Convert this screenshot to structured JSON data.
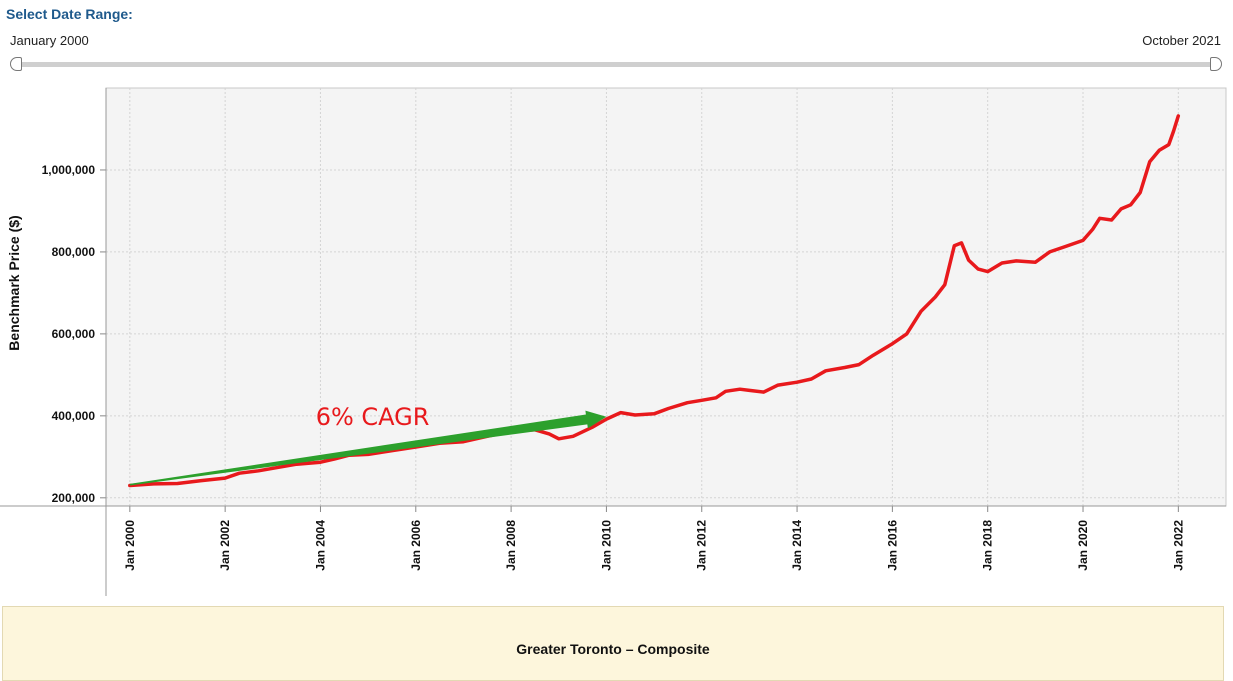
{
  "range": {
    "title": "Select Date Range:",
    "start_label": "January 2000",
    "end_label": "October 2021"
  },
  "footer": {
    "title": "Greater Toronto – Composite"
  },
  "chart_data": {
    "type": "line",
    "title": "",
    "xlabel": "",
    "ylabel": "Benchmark Price ($)",
    "xlim": [
      1999.5,
      2023.0
    ],
    "ylim": [
      180000,
      1200000
    ],
    "grid": true,
    "xticks": [
      {
        "value": 2000,
        "label": "Jan 2000"
      },
      {
        "value": 2002,
        "label": "Jan 2002"
      },
      {
        "value": 2004,
        "label": "Jan 2004"
      },
      {
        "value": 2006,
        "label": "Jan 2006"
      },
      {
        "value": 2008,
        "label": "Jan 2008"
      },
      {
        "value": 2010,
        "label": "Jan 2010"
      },
      {
        "value": 2012,
        "label": "Jan 2012"
      },
      {
        "value": 2014,
        "label": "Jan 2014"
      },
      {
        "value": 2016,
        "label": "Jan 2016"
      },
      {
        "value": 2018,
        "label": "Jan 2018"
      },
      {
        "value": 2020,
        "label": "Jan 2020"
      },
      {
        "value": 2022,
        "label": "Jan 2022"
      }
    ],
    "yticks": [
      {
        "value": 200000,
        "label": "200,000"
      },
      {
        "value": 400000,
        "label": "400,000"
      },
      {
        "value": 600000,
        "label": "600,000"
      },
      {
        "value": 800000,
        "label": "800,000"
      },
      {
        "value": 1000000,
        "label": "1,000,000"
      }
    ],
    "series": [
      {
        "color": "#e8191c",
        "points": [
          [
            2000.0,
            230000
          ],
          [
            2000.5,
            234000
          ],
          [
            2001.0,
            235000
          ],
          [
            2001.5,
            242000
          ],
          [
            2002.0,
            248000
          ],
          [
            2002.3,
            260000
          ],
          [
            2002.7,
            266000
          ],
          [
            2003.0,
            272000
          ],
          [
            2003.5,
            282000
          ],
          [
            2004.0,
            287000
          ],
          [
            2004.3,
            295000
          ],
          [
            2004.6,
            304000
          ],
          [
            2005.0,
            306000
          ],
          [
            2005.5,
            315000
          ],
          [
            2006.0,
            324000
          ],
          [
            2006.5,
            333000
          ],
          [
            2007.0,
            337000
          ],
          [
            2007.5,
            350000
          ],
          [
            2008.0,
            362000
          ],
          [
            2008.5,
            366000
          ],
          [
            2008.8,
            356000
          ],
          [
            2009.0,
            344000
          ],
          [
            2009.3,
            350000
          ],
          [
            2009.7,
            372000
          ],
          [
            2010.0,
            392000
          ],
          [
            2010.3,
            408000
          ],
          [
            2010.6,
            402000
          ],
          [
            2011.0,
            405000
          ],
          [
            2011.3,
            418000
          ],
          [
            2011.7,
            432000
          ],
          [
            2012.0,
            438000
          ],
          [
            2012.3,
            444000
          ],
          [
            2012.5,
            460000
          ],
          [
            2012.8,
            465000
          ],
          [
            2013.0,
            462000
          ],
          [
            2013.3,
            458000
          ],
          [
            2013.6,
            475000
          ],
          [
            2014.0,
            482000
          ],
          [
            2014.3,
            490000
          ],
          [
            2014.6,
            510000
          ],
          [
            2015.0,
            518000
          ],
          [
            2015.3,
            525000
          ],
          [
            2015.6,
            548000
          ],
          [
            2016.0,
            576000
          ],
          [
            2016.3,
            600000
          ],
          [
            2016.6,
            655000
          ],
          [
            2016.9,
            690000
          ],
          [
            2017.1,
            720000
          ],
          [
            2017.3,
            815000
          ],
          [
            2017.45,
            822000
          ],
          [
            2017.6,
            780000
          ],
          [
            2017.8,
            758000
          ],
          [
            2018.0,
            752000
          ],
          [
            2018.3,
            773000
          ],
          [
            2018.6,
            778000
          ],
          [
            2019.0,
            775000
          ],
          [
            2019.3,
            800000
          ],
          [
            2019.6,
            812000
          ],
          [
            2020.0,
            828000
          ],
          [
            2020.2,
            855000
          ],
          [
            2020.35,
            882000
          ],
          [
            2020.6,
            878000
          ],
          [
            2020.8,
            905000
          ],
          [
            2021.0,
            915000
          ],
          [
            2021.2,
            945000
          ],
          [
            2021.4,
            1020000
          ],
          [
            2021.6,
            1048000
          ],
          [
            2021.8,
            1062000
          ],
          [
            2021.9,
            1095000
          ],
          [
            2022.0,
            1132000
          ]
        ]
      }
    ],
    "annotations": {
      "cagr_text": "6% CAGR",
      "cagr_color": "#e8191c",
      "arrow_color": "#2ca02c",
      "arrow_from": [
        2000.0,
        232000
      ],
      "arrow_to": [
        2010.0,
        398000
      ]
    }
  }
}
